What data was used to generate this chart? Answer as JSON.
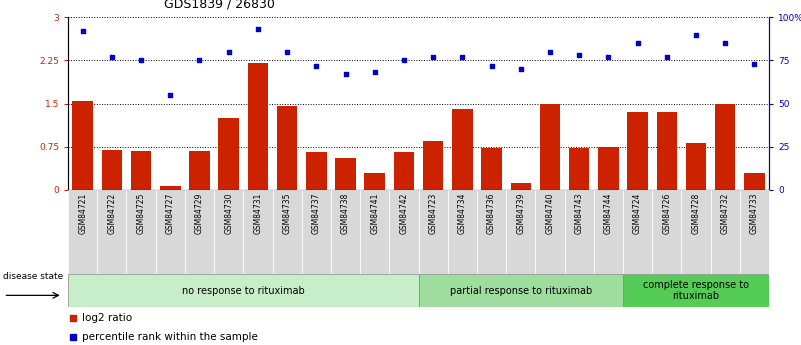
{
  "title": "GDS1839 / 26830",
  "samples": [
    "GSM84721",
    "GSM84722",
    "GSM84725",
    "GSM84727",
    "GSM84729",
    "GSM84730",
    "GSM84731",
    "GSM84735",
    "GSM84737",
    "GSM84738",
    "GSM84741",
    "GSM84742",
    "GSM84723",
    "GSM84734",
    "GSM84736",
    "GSM84739",
    "GSM84740",
    "GSM84743",
    "GSM84744",
    "GSM84724",
    "GSM84726",
    "GSM84728",
    "GSM84732",
    "GSM84733"
  ],
  "log2_ratio": [
    1.55,
    0.7,
    0.68,
    0.07,
    0.68,
    1.25,
    2.2,
    1.45,
    0.65,
    0.55,
    0.3,
    0.65,
    0.85,
    1.4,
    0.72,
    0.12,
    1.5,
    0.72,
    0.75,
    1.35,
    1.35,
    0.82,
    1.5,
    0.3
  ],
  "percentile_rank": [
    92,
    77,
    75,
    55,
    75,
    80,
    93,
    80,
    72,
    67,
    68,
    75,
    77,
    77,
    72,
    70,
    80,
    78,
    77,
    85,
    77,
    90,
    85,
    73
  ],
  "groups": [
    {
      "label": "no response to rituximab",
      "start": 0,
      "end": 12,
      "color": "#c8eec9"
    },
    {
      "label": "partial response to rituximab",
      "start": 12,
      "end": 19,
      "color": "#9edd9e"
    },
    {
      "label": "complete response to\nrituximab",
      "start": 19,
      "end": 24,
      "color": "#55cc55"
    }
  ],
  "bar_color": "#cc2200",
  "dot_color": "#0000cc",
  "ylim_left": [
    0,
    3.0
  ],
  "ylim_right": [
    0,
    100
  ],
  "yticks_left": [
    0,
    0.75,
    1.5,
    2.25,
    3.0
  ],
  "yticks_right": [
    0,
    25,
    50,
    75,
    100
  ],
  "ytick_labels_left": [
    "0",
    "0.75",
    "1.5",
    "2.25",
    "3"
  ],
  "ytick_labels_right": [
    "0",
    "25",
    "50",
    "75",
    "100%"
  ],
  "legend_log2": "log2 ratio",
  "legend_pct": "percentile rank within the sample",
  "disease_state_label": "disease state",
  "title_fontsize": 9,
  "tick_fontsize": 6.5,
  "sample_fontsize": 5.5,
  "group_fontsize": 7,
  "legend_fontsize": 7.5
}
